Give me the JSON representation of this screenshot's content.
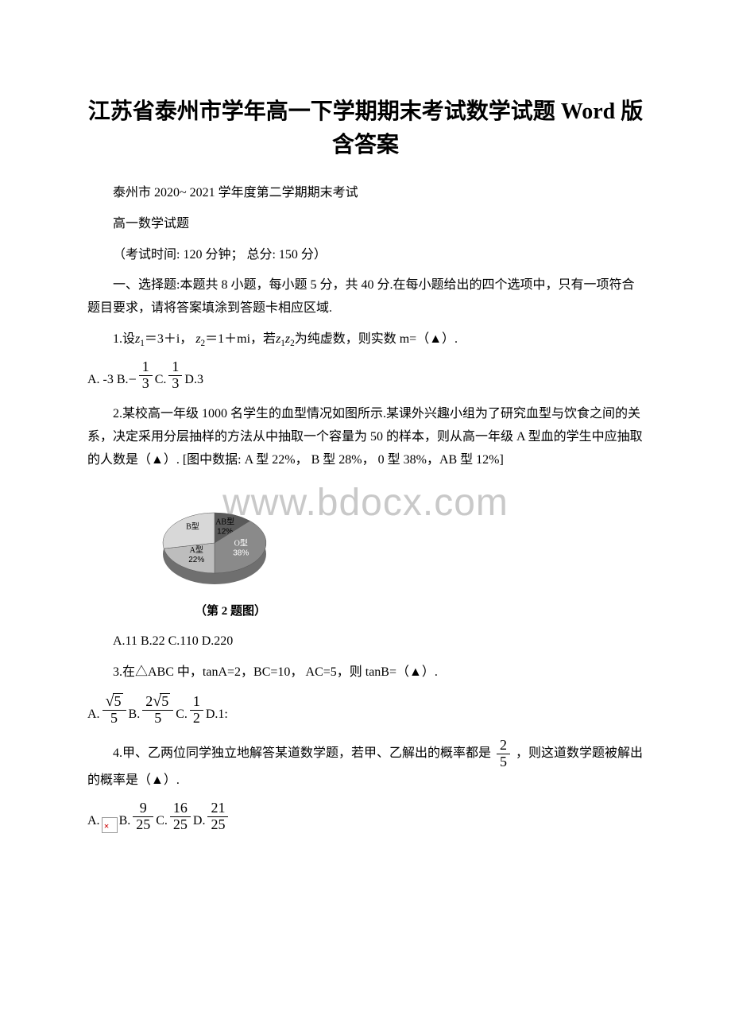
{
  "watermark": "www.bdocx.com",
  "title_line1": "江苏省泰州市学年高一下学期期末考试数学试题 Word 版",
  "title_line2": "含答案",
  "header": {
    "school_year": "泰州市 2020~ 2021 学年度第二学期期末考试",
    "subject": "高一数学试题",
    "exam_info": "（考试时间: 120 分钟；  总分: 150 分）"
  },
  "section1": {
    "heading": "一、选择题:本题共 8 小题，每小题 5 分，共 40 分.在每小题给出的四个选项中，只有一项符合题目要求，请将答案填涂到答题卡相应区域."
  },
  "q1": {
    "stem_prefix": "1.设",
    "z1": "z",
    "z1sub": "1",
    "z1eq": "＝3＋i",
    "sep": "，",
    "z2": "z",
    "z2sub": "2",
    "z2eq": "＝1＋mi",
    "stem_suffix": "，若",
    "prod_a": "z",
    "prod_asub": "1",
    "prod_b": "z",
    "prod_bsub": "2",
    "stem_end": "为纯虚数，则实数 m=（▲）.",
    "optA": "A. -3 B.",
    "optB_num": "1",
    "optB_den": "3",
    "optB_sign": "−",
    "optC_lbl": " C. ",
    "optC_num": "1",
    "optC_den": "3",
    "optD": " D.3"
  },
  "q2": {
    "stem": "2.某校高一年级 1000 名学生的血型情况如图所示.某课外兴趣小组为了研究血型与饮食之间的关系，决定采用分层抽样的方法从中抽取一个容量为 50 的样本，则从高一年级 A 型血的学生中应抽取的人数是（▲）. [图中数据: A 型 22%， B 型 28%， 0 型 38%，AB 型 12%]",
    "caption": "（第 2 题图）",
    "options": "A.11 B.22 C.110 D.220",
    "pie": {
      "slices": [
        {
          "label": "AB型",
          "pct": "12%",
          "value": 12,
          "color": "#5a5a5a"
        },
        {
          "label": "O型",
          "pct": "38%",
          "value": 38,
          "color": "#8a8a8a"
        },
        {
          "label": "A型",
          "pct": "22%",
          "value": 22,
          "color": "#bdbdbd"
        },
        {
          "label": "B型",
          "pct": "",
          "value": 28,
          "color": "#d8d8d8"
        }
      ]
    }
  },
  "q3": {
    "stem": "3.在△ABC 中，tanA=2，BC=10， AC=5，则 tanB=（▲）.",
    "A_lbl": "A. ",
    "A_num": "5",
    "A_den": "5",
    "A_numsqrt": "5",
    "B_lbl": " B. ",
    "B_num": "5",
    "B_den": "5",
    "B_numcoef": "2",
    "B_numsqrt": "5",
    "C_lbl": " C. ",
    "C_num": "1",
    "C_den": "2",
    "D_lbl": " D.1:"
  },
  "q4": {
    "stem_a": "4.甲、乙两位同学独立地解答某道数学题，若甲、乙解出的概率都是",
    "p_num": "2",
    "p_den": "5",
    "stem_b": "，则这道数学题被解出的概率是（▲）.",
    "A_lbl": "A. ",
    "B_lbl": " B. ",
    "B_num": "9",
    "B_den": "25",
    "C_lbl": " C. ",
    "C_num": "16",
    "C_den": "25",
    "D_lbl": " D. ",
    "D_num": "21",
    "D_den": "25"
  }
}
